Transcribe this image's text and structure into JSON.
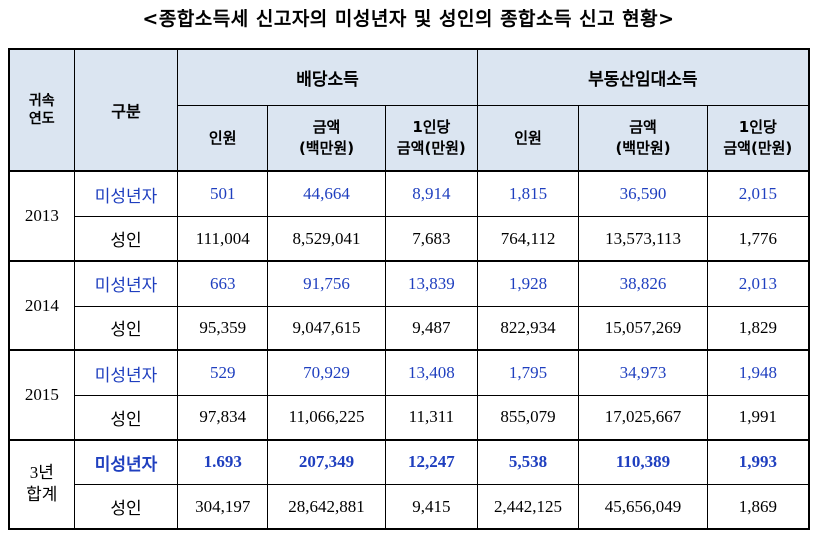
{
  "title": "<종합소득세 신고자의 미성년자 및 성인의 종합소득 신고 현황>",
  "header": {
    "year_col_line1": "귀속",
    "year_col_line2": "연도",
    "category_col": "구분",
    "group_dividend": "배당소득",
    "group_realestate": "부동산임대소득",
    "sub_persons": "인원",
    "sub_amount_line1": "금액",
    "sub_amount_line2": "(백만원)",
    "sub_per_line1": "1인당",
    "sub_per_line2": "금액(만원)"
  },
  "rows": [
    {
      "year": "2013",
      "minor": {
        "label": "미성년자",
        "d_persons": "501",
        "d_amount": "44,664",
        "d_per": "8,914",
        "r_persons": "1,815",
        "r_amount": "36,590",
        "r_per": "2,015"
      },
      "adult": {
        "label": "성인",
        "d_persons": "111,004",
        "d_amount": "8,529,041",
        "d_per": "7,683",
        "r_persons": "764,112",
        "r_amount": "13,573,113",
        "r_per": "1,776"
      }
    },
    {
      "year": "2014",
      "minor": {
        "label": "미성년자",
        "d_persons": "663",
        "d_amount": "91,756",
        "d_per": "13,839",
        "r_persons": "1,928",
        "r_amount": "38,826",
        "r_per": "2,013"
      },
      "adult": {
        "label": "성인",
        "d_persons": "95,359",
        "d_amount": "9,047,615",
        "d_per": "9,487",
        "r_persons": "822,934",
        "r_amount": "15,057,269",
        "r_per": "1,829"
      }
    },
    {
      "year": "2015",
      "minor": {
        "label": "미성년자",
        "d_persons": "529",
        "d_amount": "70,929",
        "d_per": "13,408",
        "r_persons": "1,795",
        "r_amount": "34,973",
        "r_per": "1,948"
      },
      "adult": {
        "label": "성인",
        "d_persons": "97,834",
        "d_amount": "11,066,225",
        "d_per": "11,311",
        "r_persons": "855,079",
        "r_amount": "17,025,667",
        "r_per": "1,991"
      }
    },
    {
      "year_line1": "3년",
      "year_line2": "합계",
      "minor": {
        "label": "미성년자",
        "d_persons": "1.693",
        "d_amount": "207,349",
        "d_per": "12,247",
        "r_persons": "5,538",
        "r_amount": "110,389",
        "r_per": "1,993"
      },
      "adult": {
        "label": "성인",
        "d_persons": "304,197",
        "d_amount": "28,642,881",
        "d_per": "9,415",
        "r_persons": "2,442,125",
        "r_amount": "45,656,049",
        "r_per": "1,869"
      }
    }
  ],
  "colors": {
    "header_bg": "#dbe5f1",
    "minor_text": "#1f3fbf"
  }
}
